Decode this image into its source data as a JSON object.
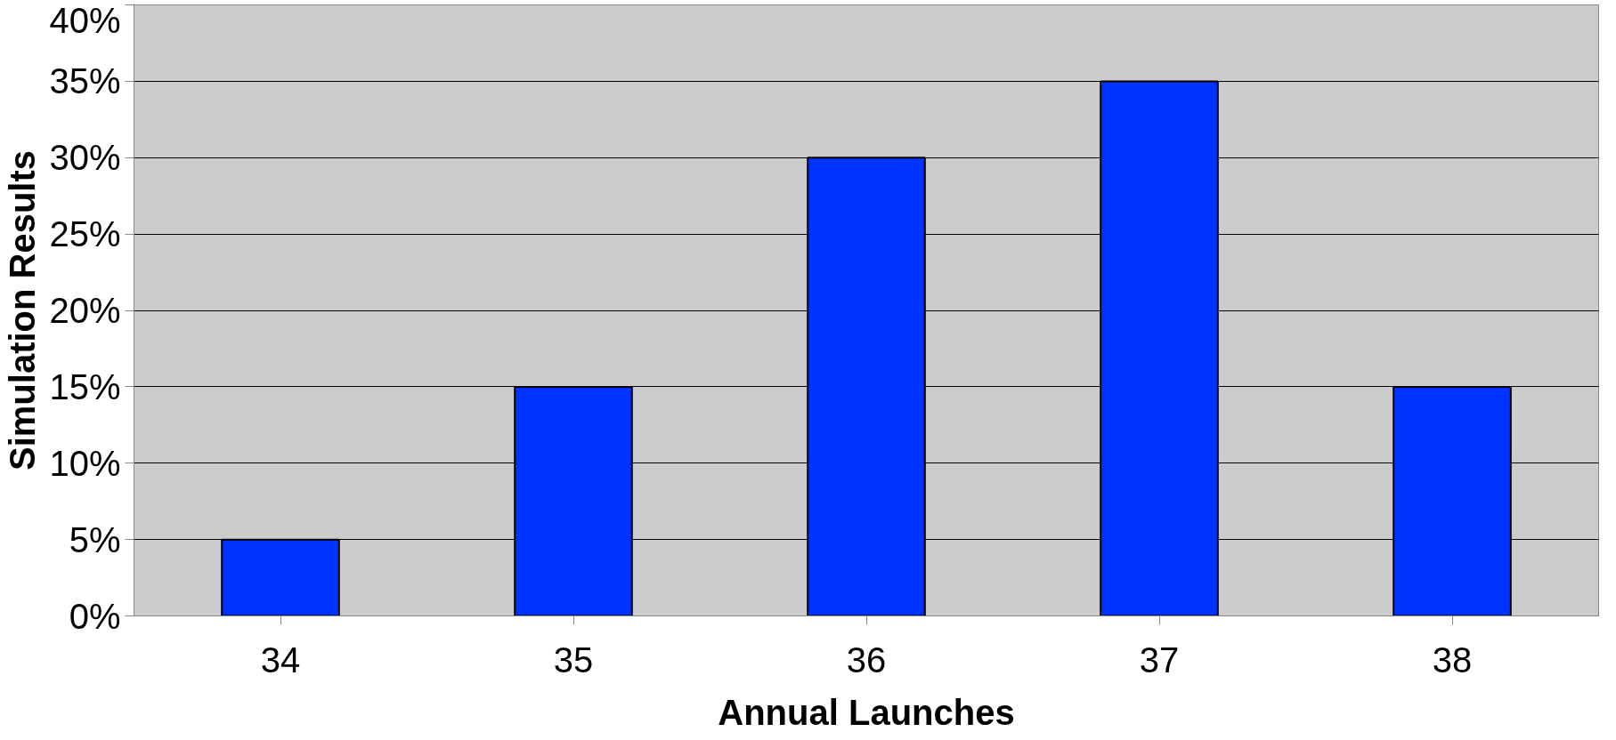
{
  "chart_data": {
    "type": "bar",
    "xlabel": "Annual Launches",
    "ylabel": "Simulation Results",
    "categories": [
      "34",
      "35",
      "36",
      "37",
      "38"
    ],
    "values": [
      5,
      15,
      30,
      35,
      15
    ],
    "color": "#0033ff",
    "ylim": [
      0,
      40
    ],
    "yticks": [
      {
        "value": 0,
        "label": "0%"
      },
      {
        "value": 5,
        "label": "5%"
      },
      {
        "value": 10,
        "label": "10%"
      },
      {
        "value": 15,
        "label": "15%"
      },
      {
        "value": 20,
        "label": "20%"
      },
      {
        "value": 25,
        "label": "25%"
      },
      {
        "value": 30,
        "label": "30%"
      },
      {
        "value": 35,
        "label": "35%"
      },
      {
        "value": 40,
        "label": "40%"
      }
    ],
    "grid": "y"
  }
}
